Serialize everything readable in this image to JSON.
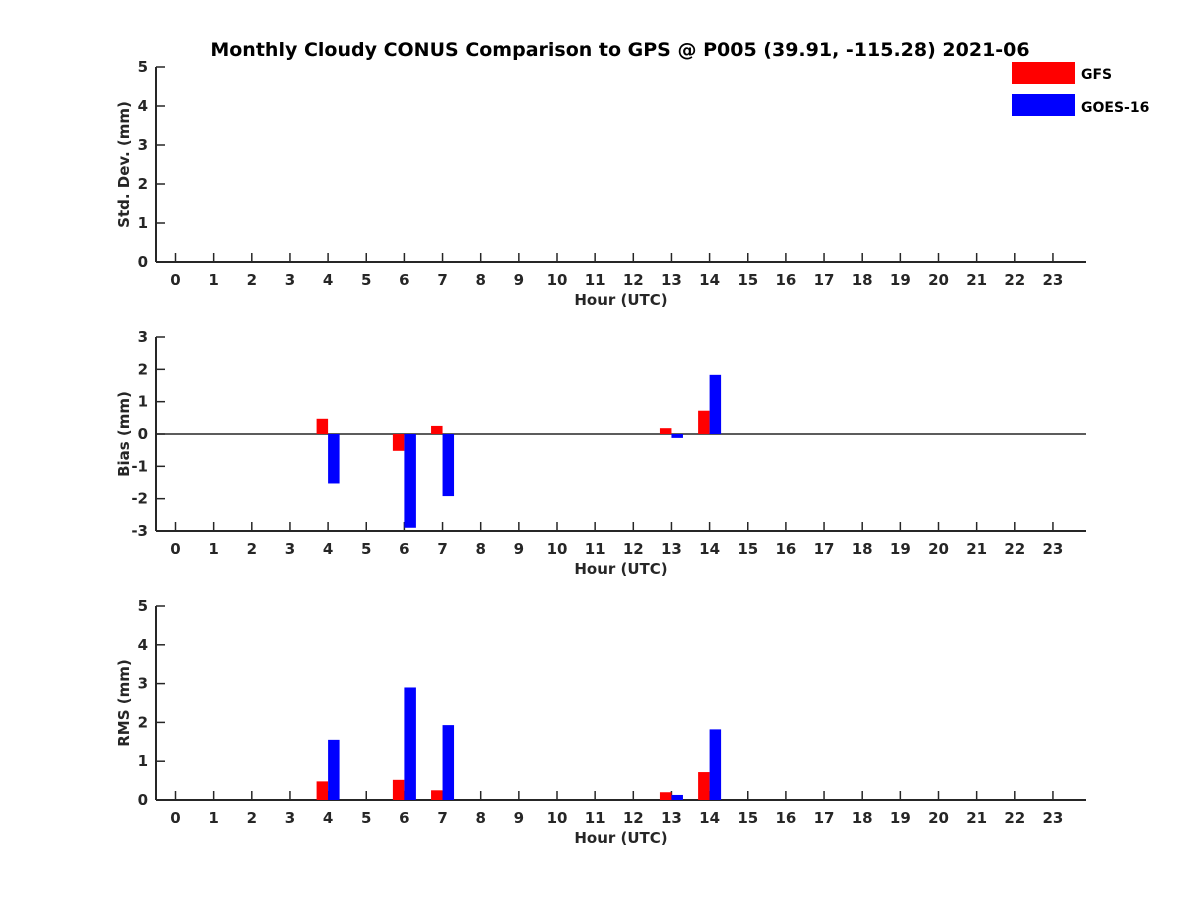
{
  "figure": {
    "title": "Monthly Cloudy CONUS Comparison to GPS @ P005 (39.91, -115.28) 2021-06"
  },
  "legend": [
    {
      "label": "GFS",
      "color": "#ff0000"
    },
    {
      "label": "GOES-16",
      "color": "#0000ff"
    }
  ],
  "chart_data": [
    {
      "type": "bar",
      "xlabel": "Hour (UTC)",
      "ylabel": "Std. Dev. (mm)",
      "ylim": [
        0,
        5
      ],
      "yticks": [
        0,
        1,
        2,
        3,
        4,
        5
      ],
      "categories": [
        "0",
        "1",
        "2",
        "3",
        "4",
        "5",
        "6",
        "7",
        "8",
        "9",
        "10",
        "11",
        "12",
        "13",
        "14",
        "15",
        "16",
        "17",
        "18",
        "19",
        "20",
        "21",
        "22",
        "23"
      ],
      "series": [
        {
          "name": "GFS",
          "color": "#ff0000",
          "values": [
            null,
            null,
            null,
            null,
            null,
            null,
            null,
            null,
            null,
            null,
            null,
            null,
            null,
            null,
            null,
            null,
            null,
            null,
            null,
            null,
            null,
            null,
            null,
            null
          ]
        },
        {
          "name": "GOES-16",
          "color": "#0000ff",
          "values": [
            null,
            null,
            null,
            null,
            null,
            null,
            null,
            null,
            null,
            null,
            null,
            null,
            null,
            null,
            null,
            null,
            null,
            null,
            null,
            null,
            null,
            null,
            null,
            null
          ]
        }
      ],
      "zero_line": false
    },
    {
      "type": "bar",
      "xlabel": "Hour (UTC)",
      "ylabel": "Bias (mm)",
      "ylim": [
        -3,
        3
      ],
      "yticks": [
        -3,
        -2,
        -1,
        0,
        1,
        2,
        3
      ],
      "categories": [
        "0",
        "1",
        "2",
        "3",
        "4",
        "5",
        "6",
        "7",
        "8",
        "9",
        "10",
        "11",
        "12",
        "13",
        "14",
        "15",
        "16",
        "17",
        "18",
        "19",
        "20",
        "21",
        "22",
        "23"
      ],
      "series": [
        {
          "name": "GFS",
          "color": "#ff0000",
          "values": [
            null,
            null,
            null,
            null,
            0.47,
            null,
            -0.52,
            0.25,
            null,
            null,
            null,
            null,
            null,
            0.18,
            0.72,
            null,
            null,
            null,
            null,
            null,
            null,
            null,
            null,
            null
          ]
        },
        {
          "name": "GOES-16",
          "color": "#0000ff",
          "values": [
            null,
            null,
            null,
            null,
            -1.53,
            null,
            -2.9,
            -1.92,
            null,
            null,
            null,
            null,
            null,
            -0.12,
            1.83,
            null,
            null,
            null,
            null,
            null,
            null,
            null,
            null,
            null
          ]
        }
      ],
      "zero_line": true
    },
    {
      "type": "bar",
      "xlabel": "Hour (UTC)",
      "ylabel": "RMS (mm)",
      "ylim": [
        0,
        5
      ],
      "yticks": [
        0,
        1,
        2,
        3,
        4,
        5
      ],
      "categories": [
        "0",
        "1",
        "2",
        "3",
        "4",
        "5",
        "6",
        "7",
        "8",
        "9",
        "10",
        "11",
        "12",
        "13",
        "14",
        "15",
        "16",
        "17",
        "18",
        "19",
        "20",
        "21",
        "22",
        "23"
      ],
      "series": [
        {
          "name": "GFS",
          "color": "#ff0000",
          "values": [
            null,
            null,
            null,
            null,
            0.48,
            null,
            0.52,
            0.25,
            null,
            null,
            null,
            null,
            null,
            0.2,
            0.72,
            null,
            null,
            null,
            null,
            null,
            null,
            null,
            null,
            null
          ]
        },
        {
          "name": "GOES-16",
          "color": "#0000ff",
          "values": [
            null,
            null,
            null,
            null,
            1.55,
            null,
            2.9,
            1.93,
            null,
            null,
            null,
            null,
            null,
            0.13,
            1.82,
            null,
            null,
            null,
            null,
            null,
            null,
            null,
            null,
            null
          ]
        }
      ],
      "zero_line": false
    }
  ]
}
